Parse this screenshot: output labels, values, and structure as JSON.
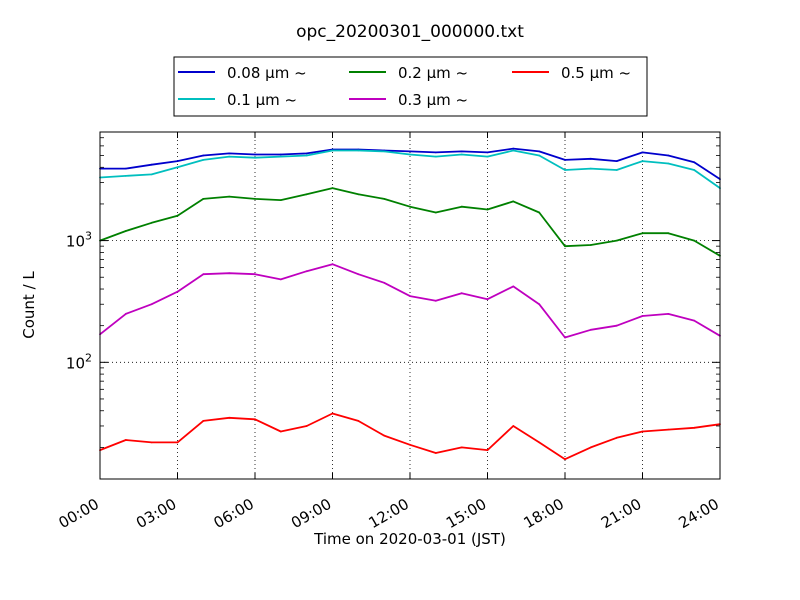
{
  "chart_data": {
    "type": "line",
    "title": "opc_20200301_000000.txt",
    "xlabel": "Time on 2020-03-01 (JST)",
    "ylabel": "Count / L",
    "yscale": "log",
    "xlim": [
      0,
      24
    ],
    "ylim": [
      11,
      7800
    ],
    "grid": true,
    "legend_position": "top-center",
    "x_ticks": [
      "00:00",
      "03:00",
      "06:00",
      "09:00",
      "12:00",
      "15:00",
      "18:00",
      "21:00",
      "24:00"
    ],
    "y_tick_labels": [
      {
        "value": 100,
        "base": "10",
        "exp": "2"
      },
      {
        "value": 1000,
        "base": "10",
        "exp": "3"
      }
    ],
    "x_unit": "hours",
    "series": [
      {
        "name": "0.08 μm ~",
        "color": "#0000cc",
        "x": [
          0,
          1,
          2,
          3,
          4,
          5,
          6,
          7,
          8,
          9,
          10,
          11,
          12,
          13,
          14,
          15,
          16,
          17,
          18,
          19,
          20,
          21,
          22,
          23,
          24
        ],
        "values": [
          3900,
          3900,
          4200,
          4500,
          5000,
          5200,
          5100,
          5100,
          5200,
          5600,
          5600,
          5500,
          5400,
          5300,
          5400,
          5300,
          5700,
          5400,
          4600,
          4700,
          4500,
          5300,
          5000,
          4400,
          3200
        ]
      },
      {
        "name": "0.1 μm ~",
        "color": "#00bfbf",
        "x": [
          0,
          1,
          2,
          3,
          4,
          5,
          6,
          7,
          8,
          9,
          10,
          11,
          12,
          13,
          14,
          15,
          16,
          17,
          18,
          19,
          20,
          21,
          22,
          23,
          24
        ],
        "values": [
          3300,
          3400,
          3500,
          4000,
          4600,
          4900,
          4800,
          4900,
          5000,
          5500,
          5500,
          5400,
          5100,
          4900,
          5100,
          4900,
          5500,
          5000,
          3800,
          3900,
          3800,
          4500,
          4300,
          3800,
          2700
        ]
      },
      {
        "name": "0.2 μm ~",
        "color": "#008000",
        "x": [
          0,
          1,
          2,
          3,
          4,
          5,
          6,
          7,
          8,
          9,
          10,
          11,
          12,
          13,
          14,
          15,
          16,
          17,
          18,
          19,
          20,
          21,
          22,
          23,
          24
        ],
        "values": [
          1000,
          1200,
          1400,
          1600,
          2200,
          2300,
          2200,
          2150,
          2400,
          2700,
          2400,
          2200,
          1900,
          1700,
          1900,
          1800,
          2100,
          1700,
          900,
          920,
          1000,
          1150,
          1150,
          1000,
          750
        ]
      },
      {
        "name": "0.3 μm ~",
        "color": "#bf00bf",
        "x": [
          0,
          1,
          2,
          3,
          4,
          5,
          6,
          7,
          8,
          9,
          10,
          11,
          12,
          13,
          14,
          15,
          16,
          17,
          18,
          19,
          20,
          21,
          22,
          23,
          24
        ],
        "values": [
          170,
          250,
          300,
          380,
          530,
          540,
          530,
          480,
          560,
          640,
          530,
          450,
          350,
          320,
          370,
          330,
          420,
          300,
          160,
          185,
          200,
          240,
          250,
          220,
          165
        ]
      },
      {
        "name": "0.5 μm ~",
        "color": "#ff0000",
        "x": [
          0,
          1,
          2,
          3,
          4,
          5,
          6,
          7,
          8,
          9,
          10,
          11,
          12,
          13,
          14,
          15,
          16,
          17,
          18,
          19,
          20,
          21,
          22,
          23,
          24
        ],
        "values": [
          19,
          23,
          22,
          22,
          33,
          35,
          34,
          27,
          30,
          38,
          33,
          25,
          21,
          18,
          20,
          19,
          30,
          22,
          16,
          20,
          24,
          27,
          28,
          29,
          31
        ]
      }
    ]
  }
}
